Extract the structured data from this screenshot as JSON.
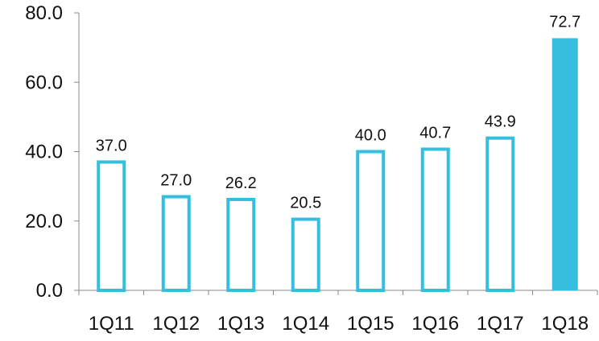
{
  "chart_data": {
    "type": "bar",
    "title": "",
    "xlabel": "",
    "ylabel": "",
    "categories": [
      "1Q11",
      "1Q12",
      "1Q13",
      "1Q14",
      "1Q15",
      "1Q16",
      "1Q17",
      "1Q18"
    ],
    "values": [
      37.0,
      27.0,
      26.2,
      20.5,
      40.0,
      40.7,
      43.9,
      72.7
    ],
    "value_labels": [
      "37.0",
      "27.0",
      "26.2",
      "20.5",
      "40.0",
      "40.7",
      "43.9",
      "72.7"
    ],
    "ylim": [
      0,
      80
    ],
    "yticks": [
      0,
      20,
      40,
      60,
      80
    ],
    "ytick_labels": [
      "0.0",
      "20.0",
      "40.0",
      "60.0",
      "80.0"
    ],
    "grid": false,
    "legend": "none",
    "colors": {
      "outline": "#35BEDE",
      "highlight_fill": "#35BEDE",
      "default_fill": "#FFFFFF",
      "axis": "#8A8A8A",
      "text": "#111111"
    },
    "highlight_categories": [
      "1Q18"
    ]
  }
}
